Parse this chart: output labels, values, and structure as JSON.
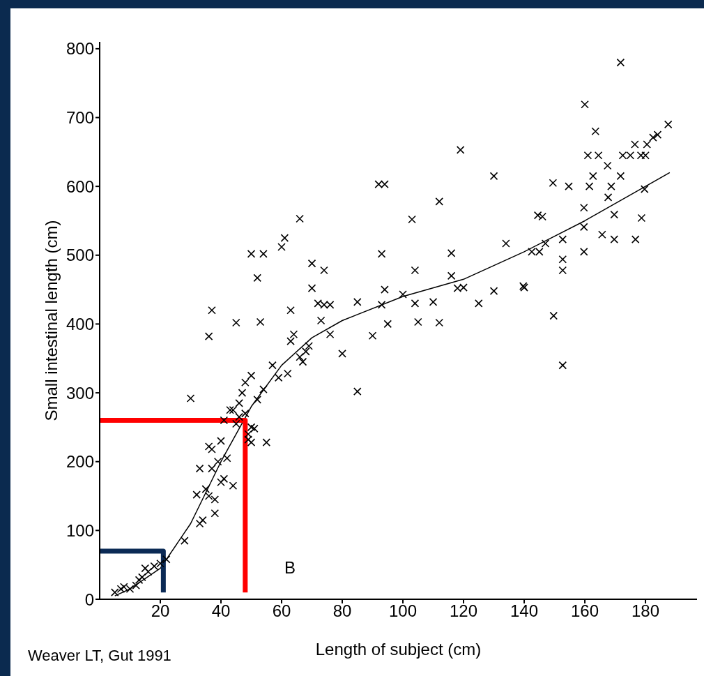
{
  "chart_data": {
    "type": "scatter",
    "xlabel": "Length of subject (cm)",
    "ylabel": "Small intestinal length (cm)",
    "xlim": [
      0,
      197
    ],
    "ylim": [
      0,
      810
    ],
    "xticks": [
      20,
      40,
      60,
      80,
      100,
      120,
      140,
      160,
      180
    ],
    "yticks": [
      0,
      100,
      200,
      300,
      400,
      500,
      600,
      700,
      800
    ],
    "grid": false,
    "annotations": [
      "Weaver LT, Gut 1991",
      "B"
    ],
    "series": [
      {
        "marker": "cross",
        "color": "#000000",
        "x": [
          5,
          7,
          8,
          10,
          12,
          13,
          14,
          15,
          16,
          18,
          20,
          22,
          28,
          33,
          34,
          32,
          35,
          36,
          37,
          33,
          38,
          38,
          40,
          41,
          42,
          44,
          39,
          40,
          36,
          37,
          41,
          45,
          43,
          44,
          46,
          47,
          48,
          49,
          50,
          51,
          50,
          49,
          55,
          52,
          54,
          50,
          48,
          46,
          30,
          36,
          37,
          45,
          50,
          54,
          52,
          53,
          57,
          60,
          61,
          63,
          64,
          63,
          59,
          62,
          66,
          66,
          67,
          68,
          69,
          70,
          70,
          72,
          73,
          74,
          74,
          76,
          76,
          80,
          85,
          85,
          90,
          92,
          94,
          93,
          93,
          94,
          95,
          100,
          103,
          104,
          104,
          105,
          110,
          112,
          112,
          116,
          116,
          118,
          119,
          120,
          125,
          130,
          130,
          134,
          140,
          145,
          146,
          147,
          171.8,
          160,
          163.5,
          187.5,
          184,
          182.5,
          176.5,
          180.5,
          161,
          164.5,
          172.5,
          175,
          178.5,
          180,
          167.5,
          162.7,
          171.8,
          149.5,
          154.7,
          161.5,
          168.7,
          179.7,
          167.7,
          159.7,
          144.5,
          169.7,
          178.7,
          159.7,
          152.7,
          165.7,
          169.7,
          176.7,
          142.5,
          159.7,
          152.7,
          152.7,
          139.7,
          149.7,
          152.7
        ],
        "values": [
          10,
          15,
          18,
          15,
          20,
          28,
          32,
          45,
          40,
          48,
          52,
          58,
          85,
          110,
          115,
          152,
          160,
          150,
          190,
          190,
          125,
          145,
          170,
          175,
          205,
          165,
          200,
          230,
          222,
          218,
          260,
          255,
          275,
          275,
          285,
          300,
          315,
          240,
          250,
          248,
          228,
          232,
          228,
          290,
          305,
          325,
          270,
          265,
          292,
          382,
          420,
          402,
          502,
          502,
          467,
          403,
          340,
          512,
          525,
          420,
          385,
          375,
          322,
          328,
          352,
          553,
          345,
          360,
          368,
          452,
          488,
          430,
          405,
          478,
          428,
          428,
          385,
          357,
          302,
          432,
          383,
          603,
          603,
          502,
          428,
          450,
          400,
          443,
          552,
          478,
          430,
          403,
          432,
          578,
          402,
          503,
          470,
          452,
          653,
          453,
          430,
          615,
          448,
          517,
          453,
          505,
          556,
          517,
          780,
          719,
          680,
          690,
          675,
          671,
          661,
          661,
          645,
          645,
          645,
          645,
          645,
          645,
          630,
          615,
          615,
          605,
          600,
          600,
          600,
          596,
          584,
          569,
          558,
          559,
          554,
          541,
          523,
          530,
          523,
          523,
          505,
          505,
          494,
          478,
          455,
          412,
          340
        ]
      },
      {
        "type": "line",
        "marker": "none",
        "color": "#000000",
        "x": [
          5,
          10,
          20,
          30,
          40,
          50,
          60,
          70,
          80,
          100,
          120,
          140,
          160,
          180,
          188
        ],
        "values": [
          5,
          15,
          45,
          110,
          200,
          280,
          340,
          380,
          405,
          440,
          465,
          505,
          550,
          600,
          620
        ]
      },
      {
        "type": "line",
        "marker": "none",
        "color": "#ff0000",
        "x": [
          0,
          48,
          48
        ],
        "values": [
          260,
          260,
          10
        ]
      },
      {
        "type": "line",
        "marker": "none",
        "color": "#0b2a55",
        "x": [
          0,
          21,
          21,
          21
        ],
        "values": [
          70,
          70,
          65,
          10
        ]
      }
    ]
  }
}
